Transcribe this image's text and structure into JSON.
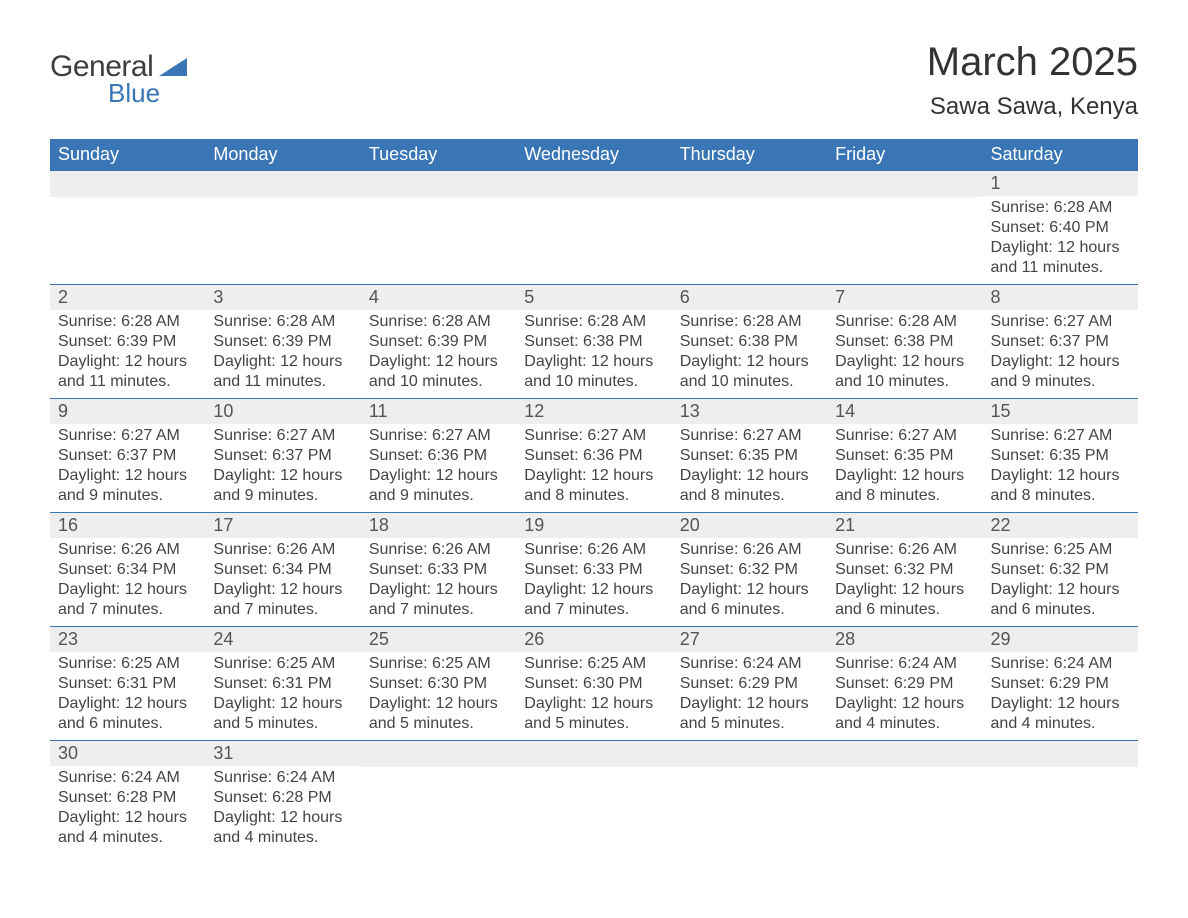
{
  "logo": {
    "line1": "General",
    "line2": "Blue"
  },
  "title": {
    "month": "March 2025",
    "location": "Sawa Sawa, Kenya"
  },
  "style": {
    "header_bg": "#3a76b6",
    "header_text": "#ffffff",
    "row_separator": "#3a76b6",
    "daynum_bg": "#eeeeee",
    "text_color": "#444444",
    "background_color": "#ffffff",
    "title_fontsize": 40,
    "location_fontsize": 24,
    "header_fontsize": 18,
    "daynum_fontsize": 18,
    "body_fontsize": 16
  },
  "weekdays": [
    "Sunday",
    "Monday",
    "Tuesday",
    "Wednesday",
    "Thursday",
    "Friday",
    "Saturday"
  ],
  "weeks": [
    [
      {
        "day": ""
      },
      {
        "day": ""
      },
      {
        "day": ""
      },
      {
        "day": ""
      },
      {
        "day": ""
      },
      {
        "day": ""
      },
      {
        "day": "1",
        "sunrise": "Sunrise: 6:28 AM",
        "sunset": "Sunset: 6:40 PM",
        "daylight1": "Daylight: 12 hours",
        "daylight2": "and 11 minutes."
      }
    ],
    [
      {
        "day": "2",
        "sunrise": "Sunrise: 6:28 AM",
        "sunset": "Sunset: 6:39 PM",
        "daylight1": "Daylight: 12 hours",
        "daylight2": "and 11 minutes."
      },
      {
        "day": "3",
        "sunrise": "Sunrise: 6:28 AM",
        "sunset": "Sunset: 6:39 PM",
        "daylight1": "Daylight: 12 hours",
        "daylight2": "and 11 minutes."
      },
      {
        "day": "4",
        "sunrise": "Sunrise: 6:28 AM",
        "sunset": "Sunset: 6:39 PM",
        "daylight1": "Daylight: 12 hours",
        "daylight2": "and 10 minutes."
      },
      {
        "day": "5",
        "sunrise": "Sunrise: 6:28 AM",
        "sunset": "Sunset: 6:38 PM",
        "daylight1": "Daylight: 12 hours",
        "daylight2": "and 10 minutes."
      },
      {
        "day": "6",
        "sunrise": "Sunrise: 6:28 AM",
        "sunset": "Sunset: 6:38 PM",
        "daylight1": "Daylight: 12 hours",
        "daylight2": "and 10 minutes."
      },
      {
        "day": "7",
        "sunrise": "Sunrise: 6:28 AM",
        "sunset": "Sunset: 6:38 PM",
        "daylight1": "Daylight: 12 hours",
        "daylight2": "and 10 minutes."
      },
      {
        "day": "8",
        "sunrise": "Sunrise: 6:27 AM",
        "sunset": "Sunset: 6:37 PM",
        "daylight1": "Daylight: 12 hours",
        "daylight2": "and 9 minutes."
      }
    ],
    [
      {
        "day": "9",
        "sunrise": "Sunrise: 6:27 AM",
        "sunset": "Sunset: 6:37 PM",
        "daylight1": "Daylight: 12 hours",
        "daylight2": "and 9 minutes."
      },
      {
        "day": "10",
        "sunrise": "Sunrise: 6:27 AM",
        "sunset": "Sunset: 6:37 PM",
        "daylight1": "Daylight: 12 hours",
        "daylight2": "and 9 minutes."
      },
      {
        "day": "11",
        "sunrise": "Sunrise: 6:27 AM",
        "sunset": "Sunset: 6:36 PM",
        "daylight1": "Daylight: 12 hours",
        "daylight2": "and 9 minutes."
      },
      {
        "day": "12",
        "sunrise": "Sunrise: 6:27 AM",
        "sunset": "Sunset: 6:36 PM",
        "daylight1": "Daylight: 12 hours",
        "daylight2": "and 8 minutes."
      },
      {
        "day": "13",
        "sunrise": "Sunrise: 6:27 AM",
        "sunset": "Sunset: 6:35 PM",
        "daylight1": "Daylight: 12 hours",
        "daylight2": "and 8 minutes."
      },
      {
        "day": "14",
        "sunrise": "Sunrise: 6:27 AM",
        "sunset": "Sunset: 6:35 PM",
        "daylight1": "Daylight: 12 hours",
        "daylight2": "and 8 minutes."
      },
      {
        "day": "15",
        "sunrise": "Sunrise: 6:27 AM",
        "sunset": "Sunset: 6:35 PM",
        "daylight1": "Daylight: 12 hours",
        "daylight2": "and 8 minutes."
      }
    ],
    [
      {
        "day": "16",
        "sunrise": "Sunrise: 6:26 AM",
        "sunset": "Sunset: 6:34 PM",
        "daylight1": "Daylight: 12 hours",
        "daylight2": "and 7 minutes."
      },
      {
        "day": "17",
        "sunrise": "Sunrise: 6:26 AM",
        "sunset": "Sunset: 6:34 PM",
        "daylight1": "Daylight: 12 hours",
        "daylight2": "and 7 minutes."
      },
      {
        "day": "18",
        "sunrise": "Sunrise: 6:26 AM",
        "sunset": "Sunset: 6:33 PM",
        "daylight1": "Daylight: 12 hours",
        "daylight2": "and 7 minutes."
      },
      {
        "day": "19",
        "sunrise": "Sunrise: 6:26 AM",
        "sunset": "Sunset: 6:33 PM",
        "daylight1": "Daylight: 12 hours",
        "daylight2": "and 7 minutes."
      },
      {
        "day": "20",
        "sunrise": "Sunrise: 6:26 AM",
        "sunset": "Sunset: 6:32 PM",
        "daylight1": "Daylight: 12 hours",
        "daylight2": "and 6 minutes."
      },
      {
        "day": "21",
        "sunrise": "Sunrise: 6:26 AM",
        "sunset": "Sunset: 6:32 PM",
        "daylight1": "Daylight: 12 hours",
        "daylight2": "and 6 minutes."
      },
      {
        "day": "22",
        "sunrise": "Sunrise: 6:25 AM",
        "sunset": "Sunset: 6:32 PM",
        "daylight1": "Daylight: 12 hours",
        "daylight2": "and 6 minutes."
      }
    ],
    [
      {
        "day": "23",
        "sunrise": "Sunrise: 6:25 AM",
        "sunset": "Sunset: 6:31 PM",
        "daylight1": "Daylight: 12 hours",
        "daylight2": "and 6 minutes."
      },
      {
        "day": "24",
        "sunrise": "Sunrise: 6:25 AM",
        "sunset": "Sunset: 6:31 PM",
        "daylight1": "Daylight: 12 hours",
        "daylight2": "and 5 minutes."
      },
      {
        "day": "25",
        "sunrise": "Sunrise: 6:25 AM",
        "sunset": "Sunset: 6:30 PM",
        "daylight1": "Daylight: 12 hours",
        "daylight2": "and 5 minutes."
      },
      {
        "day": "26",
        "sunrise": "Sunrise: 6:25 AM",
        "sunset": "Sunset: 6:30 PM",
        "daylight1": "Daylight: 12 hours",
        "daylight2": "and 5 minutes."
      },
      {
        "day": "27",
        "sunrise": "Sunrise: 6:24 AM",
        "sunset": "Sunset: 6:29 PM",
        "daylight1": "Daylight: 12 hours",
        "daylight2": "and 5 minutes."
      },
      {
        "day": "28",
        "sunrise": "Sunrise: 6:24 AM",
        "sunset": "Sunset: 6:29 PM",
        "daylight1": "Daylight: 12 hours",
        "daylight2": "and 4 minutes."
      },
      {
        "day": "29",
        "sunrise": "Sunrise: 6:24 AM",
        "sunset": "Sunset: 6:29 PM",
        "daylight1": "Daylight: 12 hours",
        "daylight2": "and 4 minutes."
      }
    ],
    [
      {
        "day": "30",
        "sunrise": "Sunrise: 6:24 AM",
        "sunset": "Sunset: 6:28 PM",
        "daylight1": "Daylight: 12 hours",
        "daylight2": "and 4 minutes."
      },
      {
        "day": "31",
        "sunrise": "Sunrise: 6:24 AM",
        "sunset": "Sunset: 6:28 PM",
        "daylight1": "Daylight: 12 hours",
        "daylight2": "and 4 minutes."
      },
      {
        "day": ""
      },
      {
        "day": ""
      },
      {
        "day": ""
      },
      {
        "day": ""
      },
      {
        "day": ""
      }
    ]
  ]
}
